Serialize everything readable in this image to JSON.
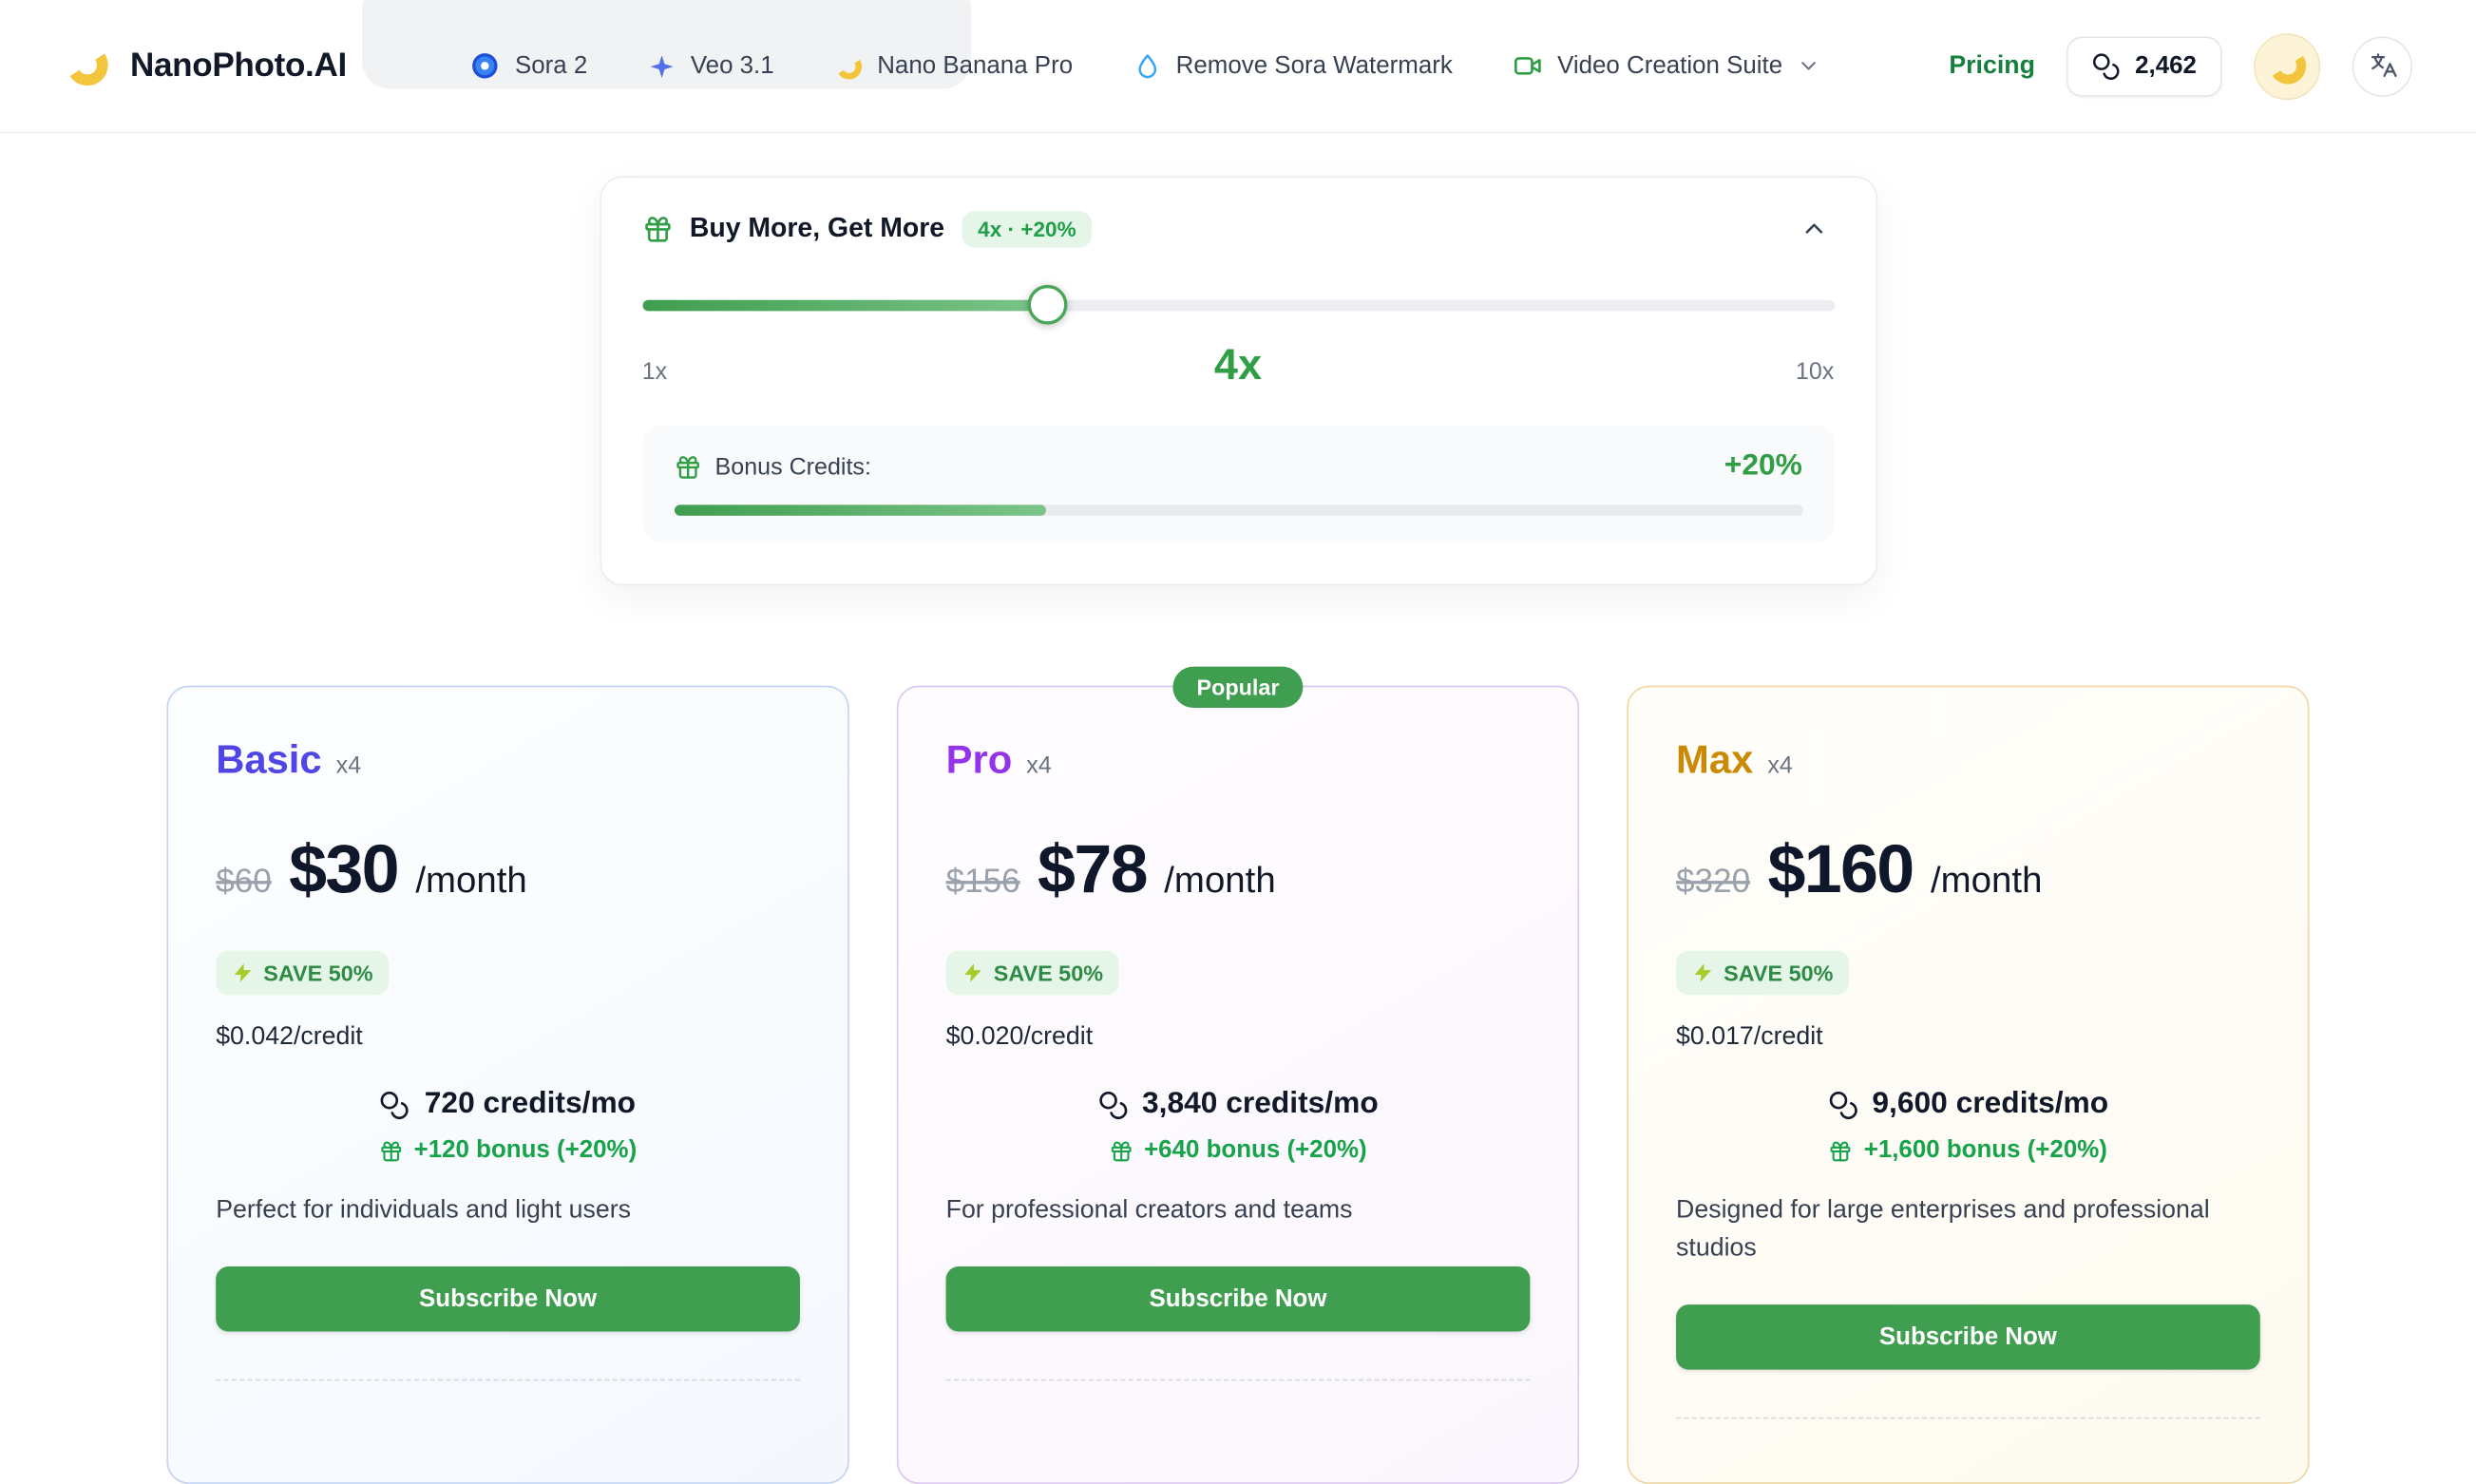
{
  "nav": {
    "brand": "NanoPhoto.AI",
    "items": [
      {
        "id": "sora-2",
        "label": "Sora 2"
      },
      {
        "id": "veo-3-1",
        "label": "Veo 3.1"
      },
      {
        "id": "nano-banana-pro",
        "label": "Nano Banana Pro"
      },
      {
        "id": "remove-sora-watermark",
        "label": "Remove Sora Watermark"
      },
      {
        "id": "video-creation-suite",
        "label": "Video Creation Suite"
      }
    ],
    "pricing_label": "Pricing",
    "credits_count": "2,462"
  },
  "booster": {
    "title": "Buy More, Get More",
    "badge": "4x · +20%",
    "slider": {
      "min_label": "1x",
      "current_label": "4x",
      "max_label": "10x",
      "percent": 34
    },
    "bonus": {
      "label": "Bonus Credits:",
      "value": "+20%",
      "percent": 33
    }
  },
  "popular_badge": "Popular",
  "plans": {
    "basic": {
      "name": "Basic",
      "multiplier": "x4",
      "old_price": "$60",
      "price": "$30",
      "period": "/month",
      "save_badge": "SAVE 50%",
      "per_credit": "$0.042/credit",
      "credits": "720 credits/mo",
      "bonus": "+120 bonus (+20%)",
      "description": "Perfect for individuals and light users",
      "cta": "Subscribe Now"
    },
    "pro": {
      "name": "Pro",
      "multiplier": "x4",
      "old_price": "$156",
      "price": "$78",
      "period": "/month",
      "save_badge": "SAVE 50%",
      "per_credit": "$0.020/credit",
      "credits": "3,840 credits/mo",
      "bonus": "+640 bonus (+20%)",
      "description": "For professional creators and teams",
      "cta": "Subscribe Now"
    },
    "max": {
      "name": "Max",
      "multiplier": "x4",
      "old_price": "$320",
      "price": "$160",
      "period": "/month",
      "save_badge": "SAVE 50%",
      "per_credit": "$0.017/credit",
      "credits": "9,600 credits/mo",
      "bonus": "+1,600 bonus (+20%)",
      "description": "Designed for large enterprises and professional studios",
      "cta": "Subscribe Now"
    }
  },
  "colors": {
    "primary_green": "#3f9e4f",
    "green_text": "#2f9e44",
    "badge_green_bg": "#e5f6e9",
    "badge_green_text": "#2f8a44",
    "basic_accent": "#4f46e5",
    "basic_border": "#c3d4f2",
    "pro_accent": "#9333ea",
    "pro_border": "#dcc8ef",
    "max_accent": "#ca8a04",
    "max_border": "#eed9a2"
  },
  "icons": {
    "logo": "banana",
    "sora": "sora-swirl",
    "veo": "sparkle",
    "nano_banana": "banana",
    "watermark": "droplet",
    "video_suite": "video-camera",
    "credits": "coins",
    "booster": "gift",
    "save": "lightning-bolt",
    "avatar": "banana",
    "language": "translate",
    "collapse": "chevron-up",
    "suite_caret": "chevron-down"
  }
}
